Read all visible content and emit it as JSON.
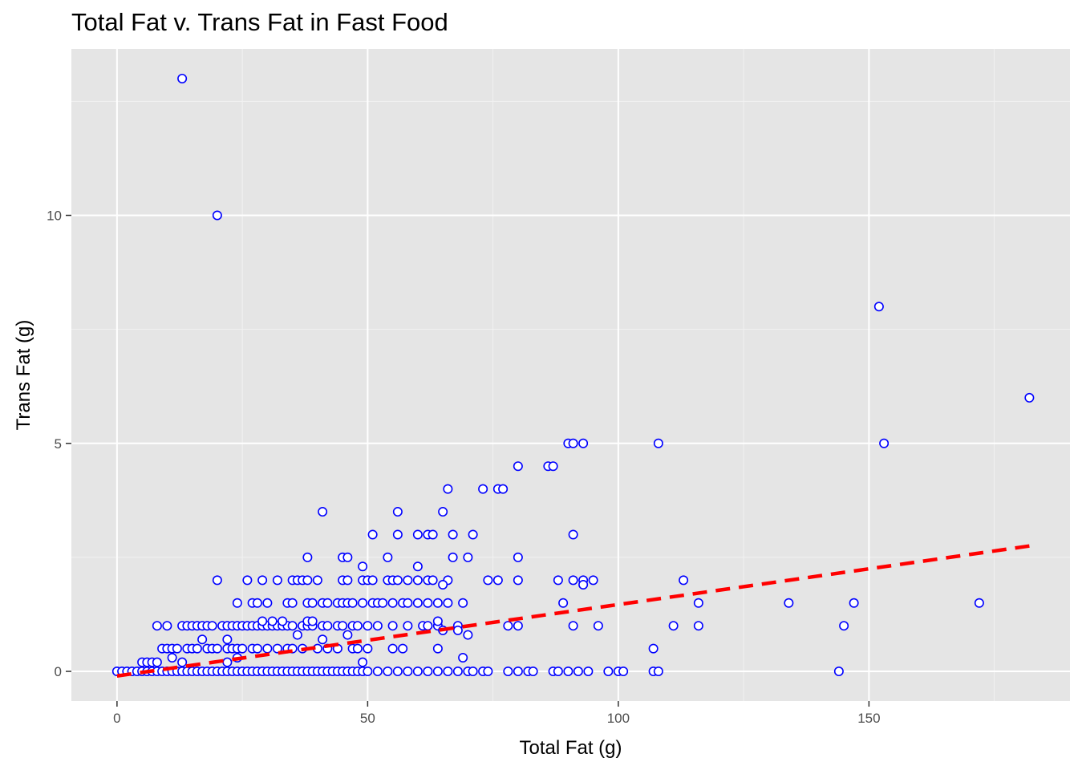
{
  "chart_data": {
    "type": "scatter",
    "title": "Total Fat v. Trans Fat in Fast Food",
    "xlabel": "Total Fat (g)",
    "ylabel": "Trans Fat (g)",
    "xlim": [
      -9.1,
      190.1
    ],
    "ylim": [
      -0.65,
      13.65
    ],
    "x_ticks": [
      0,
      50,
      100,
      150
    ],
    "x_tick_labels": [
      "0",
      "50",
      "100",
      "150"
    ],
    "y_ticks": [
      0,
      5,
      10
    ],
    "y_tick_labels": [
      "0",
      "5",
      "10"
    ],
    "grid": true,
    "point_color": "#0000ff",
    "trend_color": "#ff0000",
    "trend_line": {
      "style": "dashed",
      "x": [
        0,
        182
      ],
      "y": [
        -0.1,
        2.75
      ]
    },
    "points": [
      [
        13,
        13
      ],
      [
        20,
        10
      ],
      [
        152,
        8
      ],
      [
        182,
        6
      ],
      [
        108,
        5
      ],
      [
        153,
        5
      ],
      [
        90,
        5
      ],
      [
        91,
        5
      ],
      [
        93,
        5
      ],
      [
        66,
        4
      ],
      [
        73,
        4
      ],
      [
        76,
        4
      ],
      [
        77,
        4
      ],
      [
        80,
        4.5
      ],
      [
        86,
        4.5
      ],
      [
        87,
        4.5
      ],
      [
        41,
        3.5
      ],
      [
        56,
        3.5
      ],
      [
        65,
        3.5
      ],
      [
        51,
        3
      ],
      [
        56,
        3
      ],
      [
        60,
        3
      ],
      [
        62,
        3
      ],
      [
        63,
        3
      ],
      [
        67,
        3
      ],
      [
        71,
        3
      ],
      [
        91,
        3
      ],
      [
        38,
        2.5
      ],
      [
        45,
        2.5
      ],
      [
        46,
        2.5
      ],
      [
        54,
        2.5
      ],
      [
        67,
        2.5
      ],
      [
        70,
        2.5
      ],
      [
        80,
        2.5
      ],
      [
        49,
        2.3
      ],
      [
        60,
        2.3
      ],
      [
        20,
        2
      ],
      [
        26,
        2
      ],
      [
        29,
        2
      ],
      [
        32,
        2
      ],
      [
        35,
        2
      ],
      [
        36,
        2
      ],
      [
        37,
        2
      ],
      [
        38,
        2
      ],
      [
        40,
        2
      ],
      [
        45,
        2
      ],
      [
        46,
        2
      ],
      [
        49,
        2
      ],
      [
        50,
        2
      ],
      [
        51,
        2
      ],
      [
        54,
        2
      ],
      [
        55,
        2
      ],
      [
        56,
        2
      ],
      [
        58,
        2
      ],
      [
        60,
        2
      ],
      [
        62,
        2
      ],
      [
        63,
        2
      ],
      [
        66,
        2
      ],
      [
        74,
        2
      ],
      [
        76,
        2
      ],
      [
        80,
        2
      ],
      [
        88,
        2
      ],
      [
        91,
        2
      ],
      [
        93,
        2
      ],
      [
        95,
        2
      ],
      [
        113,
        2
      ],
      [
        93,
        1.9
      ],
      [
        65,
        1.9
      ],
      [
        24,
        1.5
      ],
      [
        27,
        1.5
      ],
      [
        28,
        1.5
      ],
      [
        30,
        1.5
      ],
      [
        34,
        1.5
      ],
      [
        35,
        1.5
      ],
      [
        38,
        1.5
      ],
      [
        39,
        1.5
      ],
      [
        41,
        1.5
      ],
      [
        42,
        1.5
      ],
      [
        44,
        1.5
      ],
      [
        45,
        1.5
      ],
      [
        46,
        1.5
      ],
      [
        47,
        1.5
      ],
      [
        49,
        1.5
      ],
      [
        51,
        1.5
      ],
      [
        52,
        1.5
      ],
      [
        53,
        1.5
      ],
      [
        55,
        1.5
      ],
      [
        57,
        1.5
      ],
      [
        58,
        1.5
      ],
      [
        60,
        1.5
      ],
      [
        62,
        1.5
      ],
      [
        64,
        1.5
      ],
      [
        66,
        1.5
      ],
      [
        69,
        1.5
      ],
      [
        89,
        1.5
      ],
      [
        116,
        1.5
      ],
      [
        134,
        1.5
      ],
      [
        147,
        1.5
      ],
      [
        172,
        1.5
      ],
      [
        8,
        1
      ],
      [
        10,
        1
      ],
      [
        13,
        1
      ],
      [
        14,
        1
      ],
      [
        15,
        1
      ],
      [
        16,
        1
      ],
      [
        17,
        1
      ],
      [
        18,
        1
      ],
      [
        19,
        1
      ],
      [
        21,
        1
      ],
      [
        22,
        1
      ],
      [
        23,
        1
      ],
      [
        24,
        1
      ],
      [
        25,
        1
      ],
      [
        26,
        1
      ],
      [
        27,
        1
      ],
      [
        28,
        1
      ],
      [
        29,
        1
      ],
      [
        30,
        1
      ],
      [
        31,
        1
      ],
      [
        32,
        1
      ],
      [
        33,
        1
      ],
      [
        34,
        1
      ],
      [
        35,
        1
      ],
      [
        37,
        1
      ],
      [
        38,
        1
      ],
      [
        39,
        1
      ],
      [
        41,
        1
      ],
      [
        42,
        1
      ],
      [
        44,
        1
      ],
      [
        45,
        1
      ],
      [
        47,
        1
      ],
      [
        48,
        1
      ],
      [
        50,
        1
      ],
      [
        52,
        1
      ],
      [
        55,
        1
      ],
      [
        58,
        1
      ],
      [
        61,
        1
      ],
      [
        62,
        1
      ],
      [
        64,
        1
      ],
      [
        68,
        1
      ],
      [
        78,
        1
      ],
      [
        80,
        1
      ],
      [
        91,
        1
      ],
      [
        96,
        1
      ],
      [
        111,
        1
      ],
      [
        116,
        1
      ],
      [
        145,
        1
      ],
      [
        29,
        1.1
      ],
      [
        31,
        1.1
      ],
      [
        33,
        1.1
      ],
      [
        38,
        1.1
      ],
      [
        39,
        1.1
      ],
      [
        64,
        1.1
      ],
      [
        65,
        0.9
      ],
      [
        68,
        0.9
      ],
      [
        70,
        0.8
      ],
      [
        46,
        0.8
      ],
      [
        36,
        0.8
      ],
      [
        9,
        0.5
      ],
      [
        10,
        0.5
      ],
      [
        11,
        0.5
      ],
      [
        12,
        0.5
      ],
      [
        14,
        0.5
      ],
      [
        15,
        0.5
      ],
      [
        16,
        0.5
      ],
      [
        18,
        0.5
      ],
      [
        19,
        0.5
      ],
      [
        20,
        0.5
      ],
      [
        22,
        0.5
      ],
      [
        23,
        0.5
      ],
      [
        24,
        0.5
      ],
      [
        25,
        0.5
      ],
      [
        27,
        0.5
      ],
      [
        28,
        0.5
      ],
      [
        30,
        0.5
      ],
      [
        32,
        0.5
      ],
      [
        34,
        0.5
      ],
      [
        35,
        0.5
      ],
      [
        37,
        0.5
      ],
      [
        40,
        0.5
      ],
      [
        42,
        0.5
      ],
      [
        44,
        0.5
      ],
      [
        47,
        0.5
      ],
      [
        48,
        0.5
      ],
      [
        50,
        0.5
      ],
      [
        55,
        0.5
      ],
      [
        57,
        0.5
      ],
      [
        64,
        0.5
      ],
      [
        107,
        0.5
      ],
      [
        11,
        0.3
      ],
      [
        24,
        0.3
      ],
      [
        41,
        0.7
      ],
      [
        17,
        0.7
      ],
      [
        22,
        0.7
      ],
      [
        5,
        0.2
      ],
      [
        6,
        0.2
      ],
      [
        7,
        0.2
      ],
      [
        8,
        0.2
      ],
      [
        13,
        0.2
      ],
      [
        22,
        0.2
      ],
      [
        49,
        0.2
      ],
      [
        69,
        0.3
      ],
      [
        0,
        0
      ],
      [
        1,
        0
      ],
      [
        2,
        0
      ],
      [
        3,
        0
      ],
      [
        4,
        0
      ],
      [
        5,
        0
      ],
      [
        6,
        0
      ],
      [
        7,
        0
      ],
      [
        8,
        0
      ],
      [
        9,
        0
      ],
      [
        10,
        0
      ],
      [
        11,
        0
      ],
      [
        12,
        0
      ],
      [
        13,
        0
      ],
      [
        14,
        0
      ],
      [
        15,
        0
      ],
      [
        16,
        0
      ],
      [
        17,
        0
      ],
      [
        18,
        0
      ],
      [
        19,
        0
      ],
      [
        20,
        0
      ],
      [
        21,
        0
      ],
      [
        22,
        0
      ],
      [
        23,
        0
      ],
      [
        24,
        0
      ],
      [
        25,
        0
      ],
      [
        26,
        0
      ],
      [
        27,
        0
      ],
      [
        28,
        0
      ],
      [
        29,
        0
      ],
      [
        30,
        0
      ],
      [
        31,
        0
      ],
      [
        32,
        0
      ],
      [
        33,
        0
      ],
      [
        34,
        0
      ],
      [
        35,
        0
      ],
      [
        36,
        0
      ],
      [
        37,
        0
      ],
      [
        38,
        0
      ],
      [
        39,
        0
      ],
      [
        40,
        0
      ],
      [
        41,
        0
      ],
      [
        42,
        0
      ],
      [
        43,
        0
      ],
      [
        44,
        0
      ],
      [
        45,
        0
      ],
      [
        46,
        0
      ],
      [
        47,
        0
      ],
      [
        48,
        0
      ],
      [
        49,
        0
      ],
      [
        50,
        0
      ],
      [
        52,
        0
      ],
      [
        54,
        0
      ],
      [
        56,
        0
      ],
      [
        58,
        0
      ],
      [
        60,
        0
      ],
      [
        62,
        0
      ],
      [
        64,
        0
      ],
      [
        66,
        0
      ],
      [
        68,
        0
      ],
      [
        70,
        0
      ],
      [
        71,
        0
      ],
      [
        73,
        0
      ],
      [
        74,
        0
      ],
      [
        78,
        0
      ],
      [
        80,
        0
      ],
      [
        82,
        0
      ],
      [
        83,
        0
      ],
      [
        87,
        0
      ],
      [
        88,
        0
      ],
      [
        90,
        0
      ],
      [
        92,
        0
      ],
      [
        94,
        0
      ],
      [
        98,
        0
      ],
      [
        100,
        0
      ],
      [
        101,
        0
      ],
      [
        107,
        0
      ],
      [
        108,
        0
      ],
      [
        144,
        0
      ]
    ]
  }
}
